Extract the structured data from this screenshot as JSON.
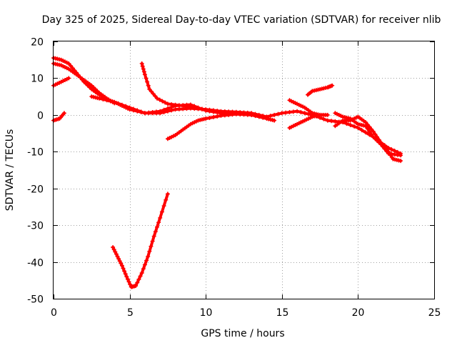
{
  "chart_data": {
    "type": "scatter",
    "title": "Day 325 of 2025, Sidereal Day-to-day VTEC variation (SDTVAR) for receiver nlib",
    "xlabel": "GPS time / hours",
    "ylabel": "SDTVAR / TECUs",
    "xlim": [
      0,
      25
    ],
    "ylim": [
      -50,
      20
    ],
    "xticks": [
      0,
      5,
      10,
      15,
      20,
      25
    ],
    "yticks": [
      -50,
      -40,
      -30,
      -20,
      -10,
      0,
      10,
      20
    ],
    "grid": true,
    "marker": "+",
    "color": "#ff0000",
    "series": [
      {
        "name": "arc-1",
        "points": [
          [
            0,
            15.5
          ],
          [
            0.5,
            15
          ],
          [
            1,
            14
          ],
          [
            1.5,
            11.5
          ],
          [
            2,
            9
          ],
          [
            2.5,
            7
          ],
          [
            3,
            5.5
          ],
          [
            3.5,
            4.2
          ],
          [
            4,
            3.5
          ],
          [
            4.5,
            2.5
          ],
          [
            5,
            1.5
          ],
          [
            6,
            0.5
          ],
          [
            7,
            0.5
          ],
          [
            8,
            1.5
          ],
          [
            9,
            1.8
          ],
          [
            10,
            1.5
          ],
          [
            11,
            1
          ],
          [
            12,
            0.8
          ],
          [
            13,
            0.5
          ],
          [
            14,
            -0.5
          ],
          [
            15,
            0.5
          ],
          [
            16,
            1
          ],
          [
            17,
            0
          ],
          [
            18,
            -1.5
          ],
          [
            19,
            -2
          ],
          [
            20,
            -3.5
          ],
          [
            21,
            -6
          ],
          [
            22,
            -9
          ],
          [
            22.8,
            -10.5
          ]
        ]
      },
      {
        "name": "arc-2",
        "points": [
          [
            0,
            14
          ],
          [
            0.5,
            13.5
          ],
          [
            1,
            12.5
          ],
          [
            1.5,
            11
          ],
          [
            2,
            9.5
          ],
          [
            2.5,
            8
          ],
          [
            3,
            6
          ],
          [
            3.5,
            4.5
          ],
          [
            4,
            3.2
          ]
        ]
      },
      {
        "name": "arc-3",
        "points": [
          [
            0,
            8
          ],
          [
            0.5,
            9
          ],
          [
            1,
            10
          ]
        ]
      },
      {
        "name": "arc-4",
        "points": [
          [
            0,
            -1.5
          ],
          [
            0.4,
            -1
          ],
          [
            0.7,
            0.5
          ]
        ]
      },
      {
        "name": "arc-5",
        "points": [
          [
            2.5,
            5
          ],
          [
            3,
            4.5
          ],
          [
            4,
            3.5
          ],
          [
            5,
            2
          ],
          [
            6,
            0.5
          ],
          [
            7,
            1
          ],
          [
            8,
            2.5
          ],
          [
            9,
            2.8
          ],
          [
            10,
            1.2
          ],
          [
            11,
            0.5
          ],
          [
            12,
            0.5
          ],
          [
            13,
            0
          ]
        ]
      },
      {
        "name": "arc-6",
        "points": [
          [
            5.8,
            14
          ],
          [
            6,
            11
          ],
          [
            6.3,
            7
          ],
          [
            6.8,
            4.5
          ],
          [
            7.5,
            3
          ],
          [
            8.5,
            2.5
          ],
          [
            9.5,
            1.8
          ],
          [
            10.5,
            1
          ],
          [
            11.5,
            0.5
          ]
        ]
      },
      {
        "name": "arc-7",
        "points": [
          [
            7.5,
            -6.5
          ],
          [
            8,
            -5.5
          ],
          [
            8.5,
            -4
          ],
          [
            9,
            -2.5
          ],
          [
            9.5,
            -1.5
          ],
          [
            10,
            -1
          ],
          [
            11,
            -0.2
          ],
          [
            12,
            0.2
          ],
          [
            13,
            0
          ],
          [
            14,
            -1
          ],
          [
            14.5,
            -1.5
          ]
        ]
      },
      {
        "name": "arc-8",
        "points": [
          [
            3.9,
            -36
          ],
          [
            4.2,
            -38.5
          ],
          [
            4.5,
            -41
          ],
          [
            4.8,
            -44
          ],
          [
            5.1,
            -46.8
          ],
          [
            5.4,
            -46.5
          ],
          [
            5.8,
            -43
          ],
          [
            6.2,
            -38.5
          ],
          [
            6.6,
            -33
          ],
          [
            7,
            -28
          ],
          [
            7.5,
            -21.5
          ]
        ]
      },
      {
        "name": "arc-9",
        "points": [
          [
            15.5,
            -3.5
          ],
          [
            16,
            -2.5
          ],
          [
            16.5,
            -1.5
          ],
          [
            17,
            -0.5
          ],
          [
            17.5,
            0
          ]
        ]
      },
      {
        "name": "arc-10",
        "points": [
          [
            16.7,
            5.5
          ],
          [
            17,
            6.5
          ],
          [
            17.5,
            7
          ],
          [
            18,
            7.5
          ],
          [
            18.3,
            8
          ]
        ]
      },
      {
        "name": "arc-11",
        "points": [
          [
            15.5,
            4
          ],
          [
            16,
            3
          ],
          [
            16.5,
            2
          ],
          [
            17,
            0.5
          ],
          [
            17.5,
            0
          ],
          [
            18,
            0
          ]
        ]
      },
      {
        "name": "arc-12",
        "points": [
          [
            18.5,
            -3
          ],
          [
            19,
            -1.5
          ],
          [
            19.5,
            -1.5
          ],
          [
            20,
            -0.5
          ],
          [
            20.5,
            -2
          ],
          [
            21,
            -4.5
          ],
          [
            21.5,
            -7.5
          ],
          [
            22,
            -10
          ],
          [
            22.3,
            -12
          ],
          [
            22.8,
            -12.5
          ]
        ]
      },
      {
        "name": "arc-13",
        "points": [
          [
            18.5,
            0.5
          ],
          [
            19,
            -0.5
          ],
          [
            19.5,
            -1
          ],
          [
            20,
            -2.5
          ],
          [
            20.5,
            -3
          ],
          [
            21,
            -6
          ],
          [
            21.5,
            -8
          ],
          [
            22,
            -10.5
          ],
          [
            22.8,
            -11
          ]
        ]
      }
    ]
  }
}
